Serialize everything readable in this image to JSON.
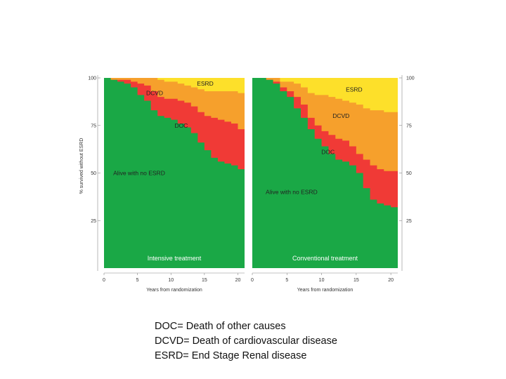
{
  "chart_data": {
    "type": "area",
    "ylabel": "% survived without ESRD",
    "xlim": [
      0,
      21
    ],
    "ylim": [
      0,
      100
    ],
    "y_ticks": [
      25,
      50,
      75,
      100
    ],
    "x_ticks": [
      0,
      5,
      10,
      15,
      20
    ],
    "band_colors": {
      "alive": "#1aa846",
      "doc": "#f03a36",
      "dcvd": "#f6a02c",
      "esrd": "#fde02a"
    },
    "panels": [
      {
        "id": "intensive",
        "title": "Intensive treatment",
        "xlabel": "Years from randomization",
        "labels": {
          "esrd": "ESRD",
          "dcvd": "DCVD",
          "doc": "DOC",
          "alive": "Alive with no ESRD"
        },
        "x": [
          0,
          1,
          2,
          3,
          4,
          5,
          6,
          7,
          8,
          9,
          10,
          11,
          12,
          13,
          14,
          15,
          16,
          17,
          18,
          19,
          20,
          21
        ],
        "alive": [
          100,
          99,
          98,
          97,
          95,
          91,
          88,
          83,
          80,
          79,
          78,
          76,
          74,
          71,
          66,
          62,
          58,
          56,
          55,
          54,
          52,
          51
        ],
        "doc": [
          100,
          99,
          99,
          99,
          98,
          97,
          96,
          93,
          90,
          89,
          89,
          88,
          87,
          85,
          82,
          80,
          79,
          78,
          77,
          76,
          73,
          73
        ],
        "dcvd": [
          100,
          100,
          100,
          100,
          100,
          100,
          100,
          100,
          99,
          98,
          98,
          97,
          96,
          95,
          94,
          93,
          93,
          93,
          93,
          93,
          92,
          92
        ]
      },
      {
        "id": "conventional",
        "title": "Conventional treatment",
        "xlabel": "Years from randomization",
        "labels": {
          "esrd": "ESRD",
          "dcvd": "DCVD",
          "doc": "DOC",
          "alive": "Alive with no ESRD"
        },
        "x": [
          0,
          1,
          2,
          3,
          4,
          5,
          6,
          7,
          8,
          9,
          10,
          11,
          12,
          13,
          14,
          15,
          16,
          17,
          18,
          19,
          20,
          21
        ],
        "alive": [
          100,
          100,
          99,
          97,
          93,
          90,
          84,
          79,
          73,
          68,
          64,
          60,
          57,
          56,
          54,
          50,
          42,
          36,
          34,
          33,
          32,
          30
        ],
        "doc": [
          100,
          100,
          99,
          98,
          95,
          93,
          90,
          86,
          79,
          75,
          72,
          70,
          68,
          67,
          64,
          60,
          57,
          54,
          52,
          51,
          51,
          51
        ],
        "dcvd": [
          100,
          100,
          100,
          100,
          98,
          98,
          97,
          95,
          92,
          91,
          91,
          90,
          89,
          88,
          87,
          86,
          84,
          83,
          83,
          82,
          82,
          82
        ]
      }
    ]
  },
  "legend": {
    "line1": "DOC= Death of other causes",
    "line2": "DCVD= Death of cardiovascular disease",
    "line3": "ESRD= End Stage Renal disease"
  }
}
